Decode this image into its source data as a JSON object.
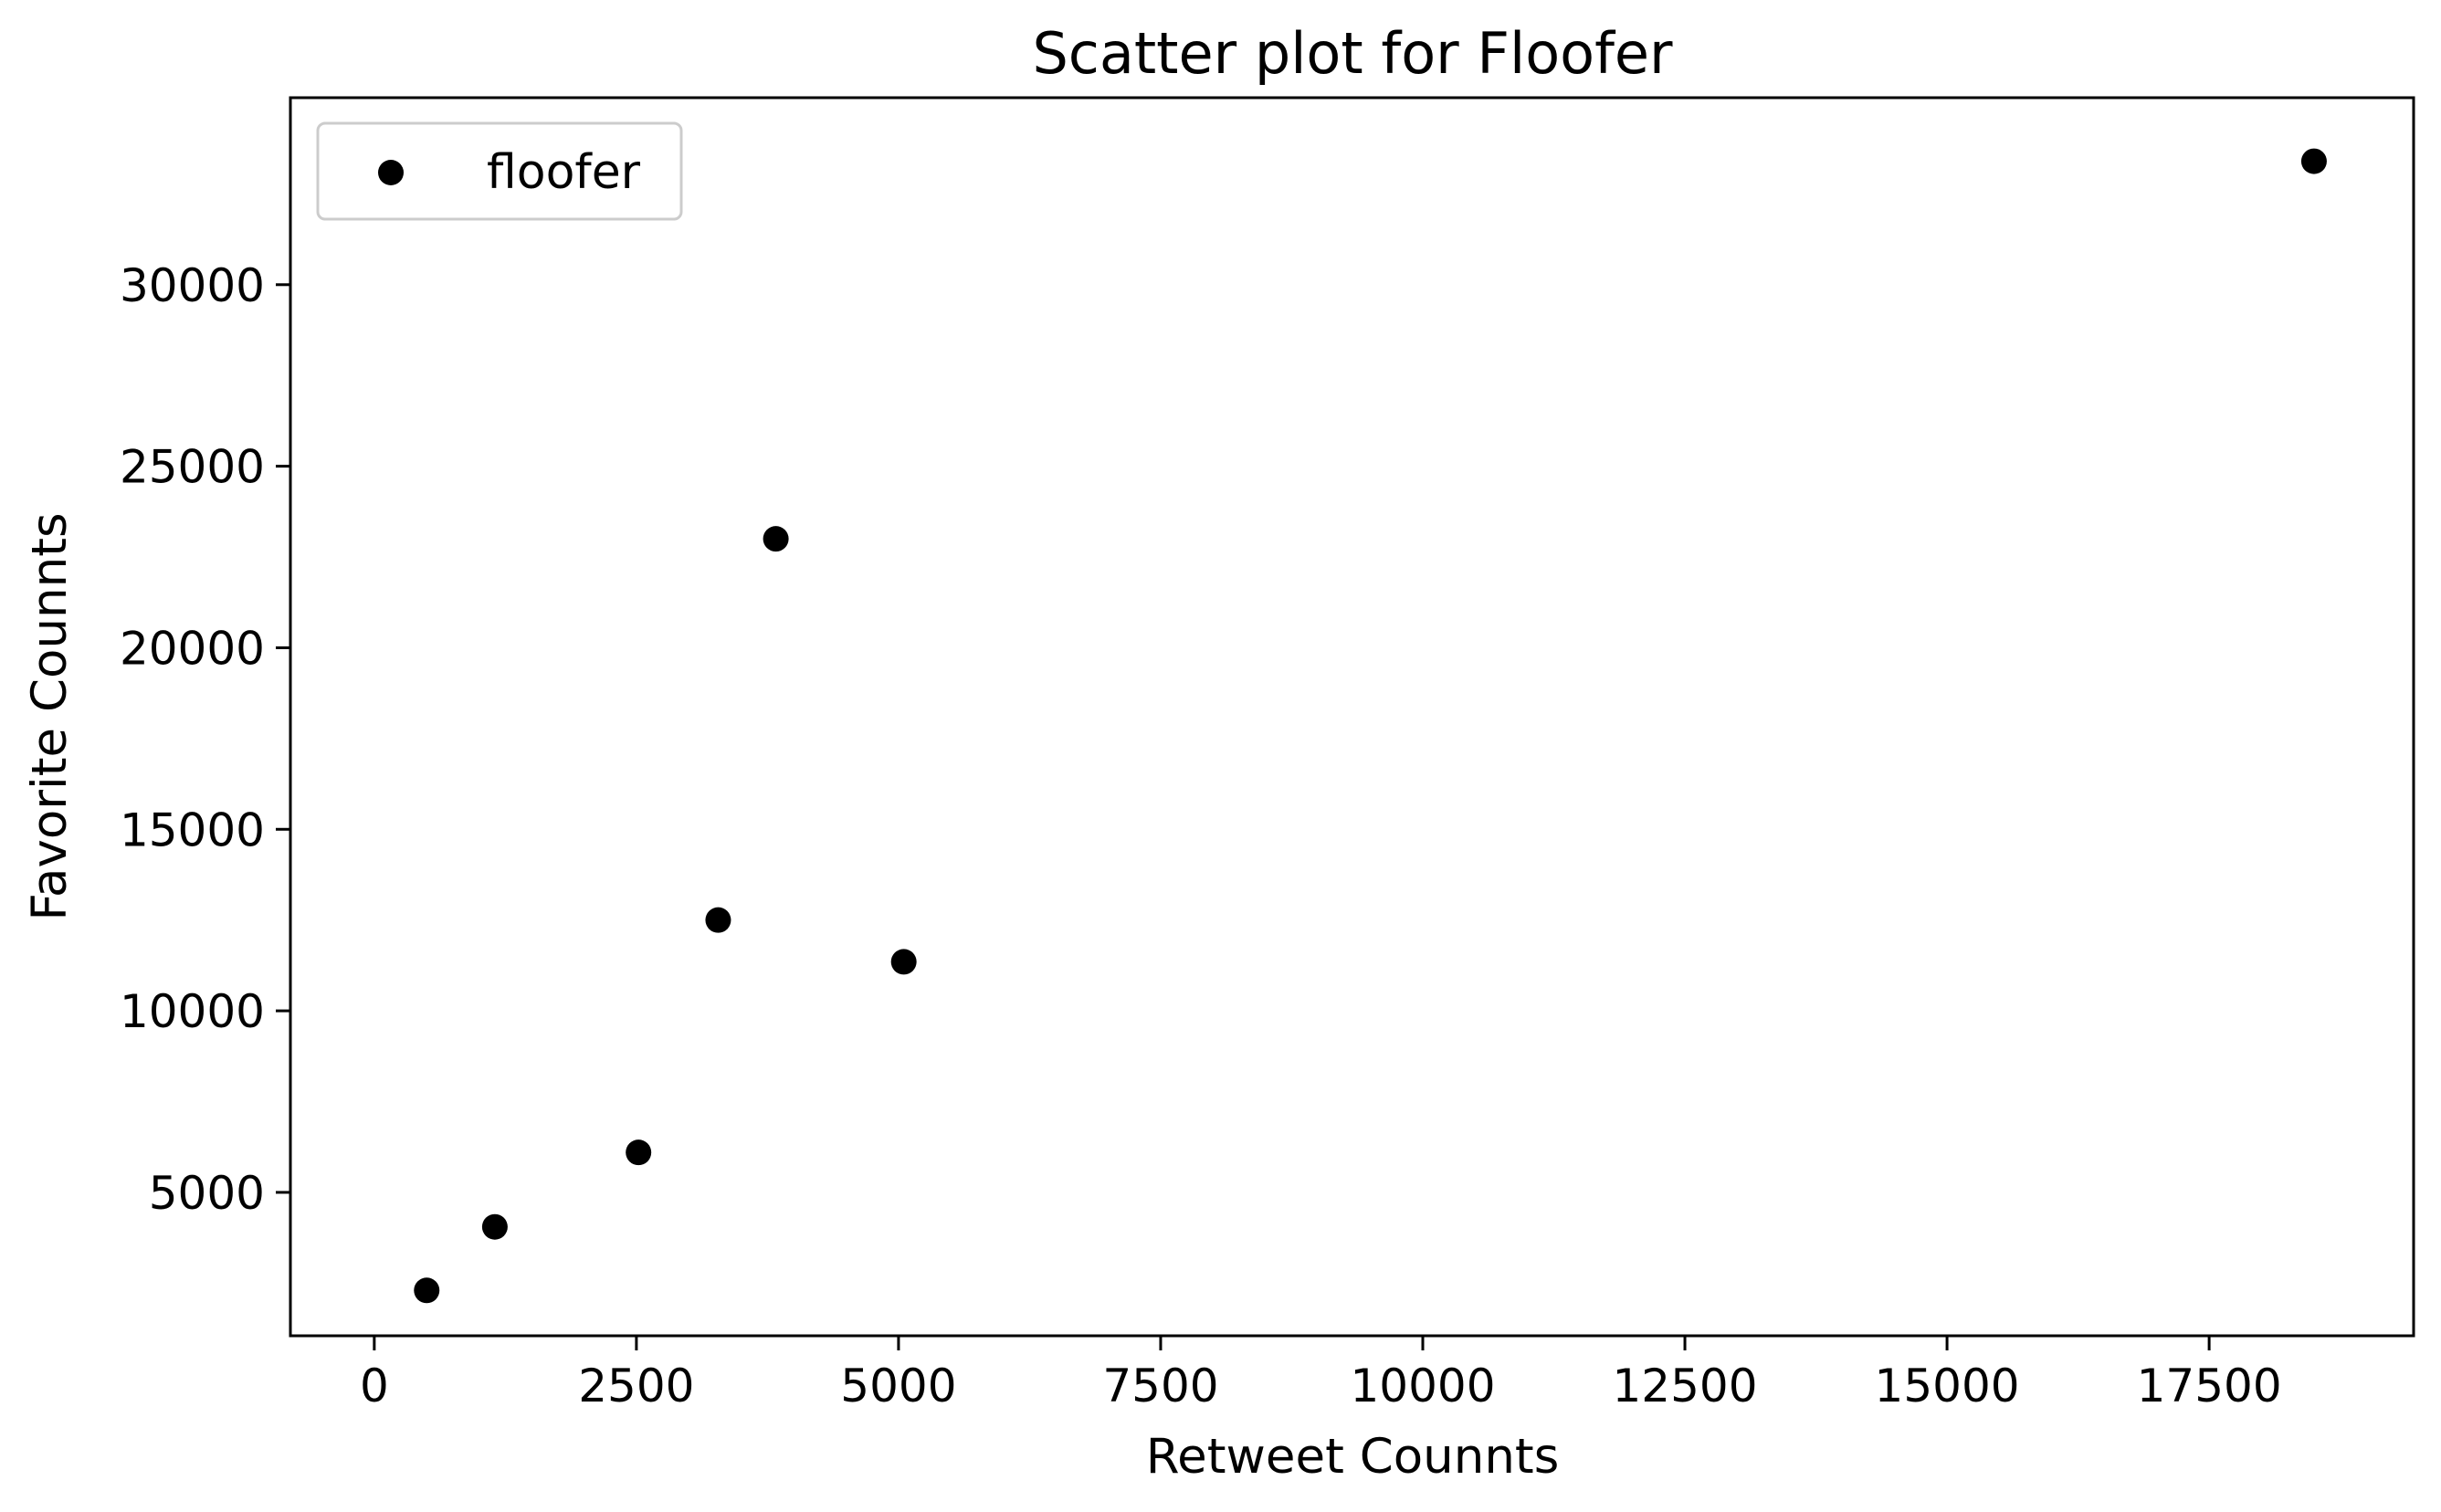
{
  "chart_data": {
    "type": "scatter",
    "title": "Scatter plot for Floofer",
    "xlabel": "Retweet Counnts",
    "ylabel": "Favorite Counnts",
    "xlim": [
      -800,
      19450
    ],
    "ylim": [
      1050,
      35150
    ],
    "x_ticks": [
      0,
      2500,
      5000,
      7500,
      10000,
      12500,
      15000,
      17500
    ],
    "y_ticks": [
      5000,
      10000,
      15000,
      20000,
      25000,
      30000
    ],
    "grid": false,
    "legend_position": "top-left",
    "marker_color": "#000000",
    "series": [
      {
        "name": "floofer",
        "points": [
          {
            "x": 500,
            "y": 2300
          },
          {
            "x": 1150,
            "y": 4050
          },
          {
            "x": 2520,
            "y": 6100
          },
          {
            "x": 3280,
            "y": 12500
          },
          {
            "x": 3830,
            "y": 23000
          },
          {
            "x": 5050,
            "y": 11350
          },
          {
            "x": 18500,
            "y": 33400
          }
        ]
      }
    ]
  }
}
